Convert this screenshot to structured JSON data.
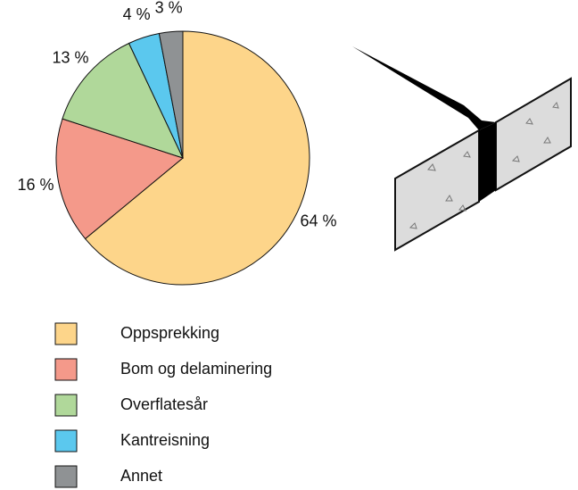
{
  "chart_data": {
    "type": "pie",
    "categories": [
      "Oppsprekking",
      "Bom og delaminering",
      "Overflatesår",
      "Kantreisning",
      "Annet"
    ],
    "values": [
      64,
      16,
      13,
      4,
      3
    ],
    "value_labels": [
      "64 %",
      "16 %",
      "13 %",
      "4 %",
      "3 %"
    ],
    "colors": [
      "#fdd58a",
      "#f4998a",
      "#b0d89a",
      "#5bc8ee",
      "#8f9294"
    ]
  }
}
